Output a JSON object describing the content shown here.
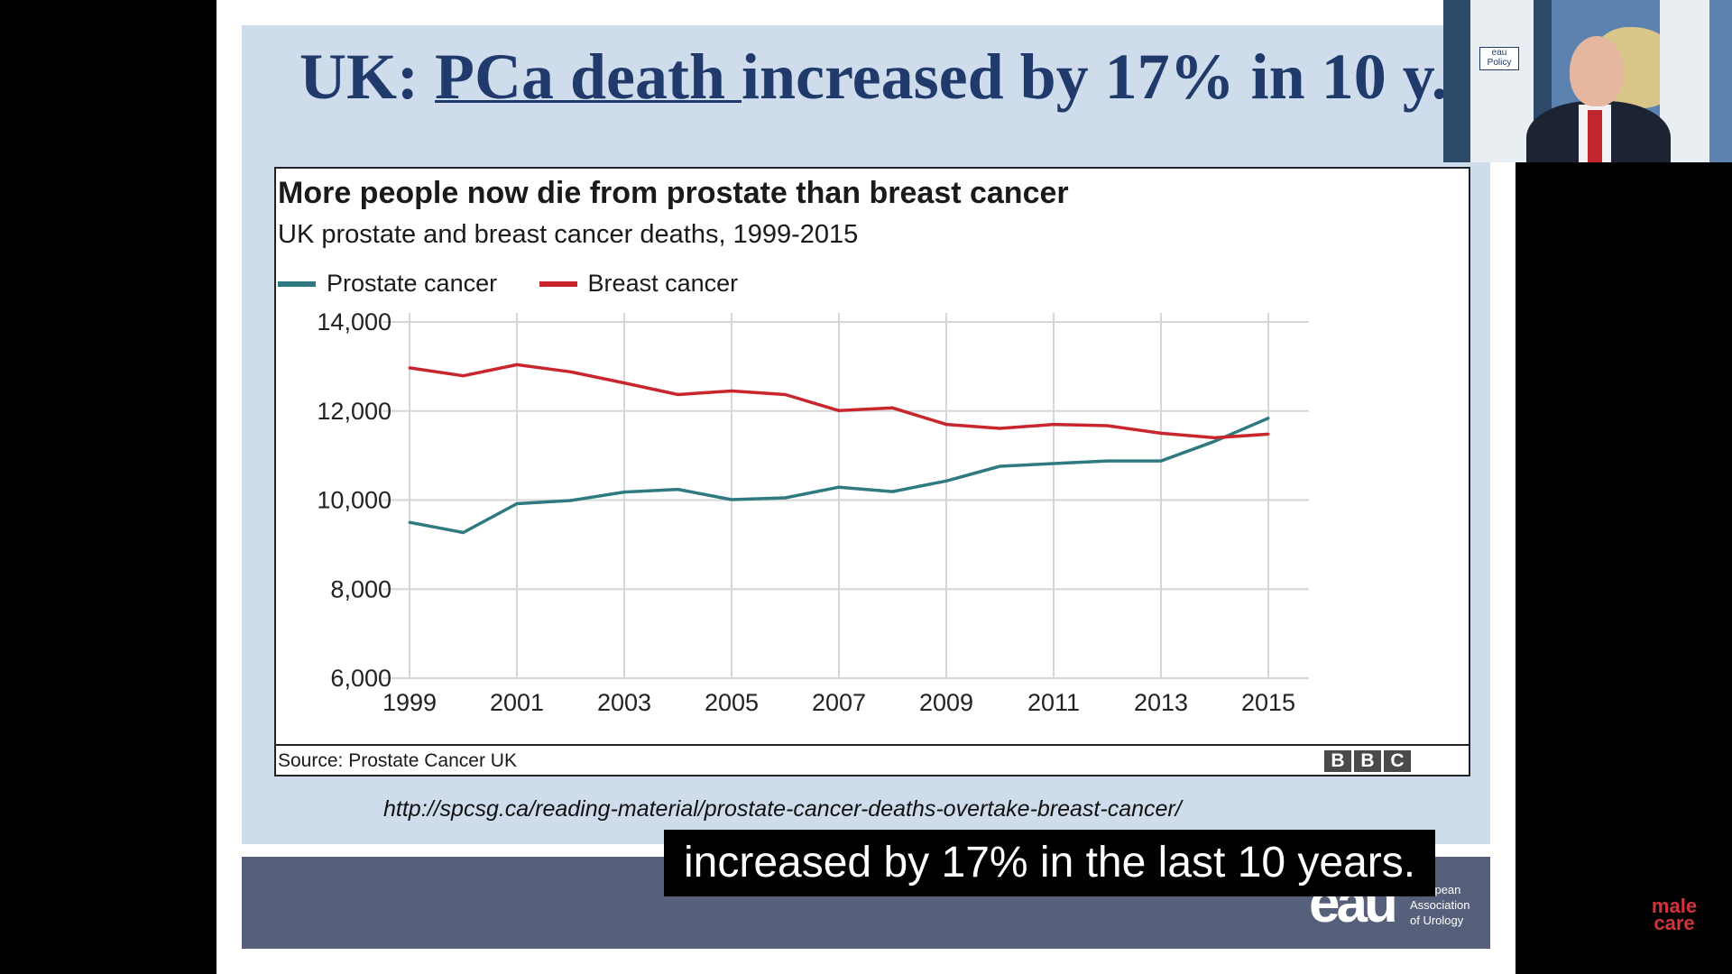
{
  "slide": {
    "title_prefix": "UK: ",
    "title_underlined": "PCa death ",
    "title_suffix": "increased by 17% in 10 y.",
    "reference_url": "http://spcsg.ca/reading-material/prostate-cancer-deaths-overtake-breast-cancer/",
    "footer": {
      "logo_text": "eau",
      "org_line1": "European",
      "org_line2": "Association",
      "org_line3": "of Urology"
    }
  },
  "caption": "increased by 17% in the last 10 years.",
  "chart": {
    "source": "Source: Prostate Cancer UK",
    "bbc_letters": [
      "B",
      "B",
      "C"
    ]
  },
  "chart_data": {
    "type": "line",
    "title": "More people now die from prostate than breast cancer",
    "subtitle": "UK prostate and breast cancer deaths, 1999-2015",
    "x": [
      1999,
      2000,
      2001,
      2002,
      2003,
      2004,
      2005,
      2006,
      2007,
      2008,
      2009,
      2010,
      2011,
      2012,
      2013,
      2014,
      2015
    ],
    "x_tick_labels": [
      "1999",
      "2001",
      "2003",
      "2005",
      "2007",
      "2009",
      "2011",
      "2013",
      "2015"
    ],
    "y_tick_labels": [
      "14,000",
      "12,000",
      "10,000",
      "8,000",
      "6,000"
    ],
    "ylim": [
      6000,
      14000
    ],
    "xlim": [
      1999,
      2015
    ],
    "grid": true,
    "legend_position": "top-left",
    "series": [
      {
        "name": "Prostate cancer",
        "color": "#2f7a80",
        "values": [
          9500,
          9270,
          9920,
          9990,
          10180,
          10240,
          10010,
          10050,
          10290,
          10190,
          10430,
          10760,
          10820,
          10880,
          10880,
          11320,
          11840
        ]
      },
      {
        "name": "Breast cancer",
        "color": "#c8262c",
        "values": [
          12970,
          12790,
          13040,
          12880,
          12630,
          12370,
          12450,
          12370,
          12010,
          12070,
          11700,
          11610,
          11700,
          11670,
          11500,
          11400,
          11480
        ]
      }
    ]
  },
  "webcam": {
    "policy_label": "eau Policy"
  },
  "watermark": {
    "line1": "male",
    "line2": "care"
  }
}
